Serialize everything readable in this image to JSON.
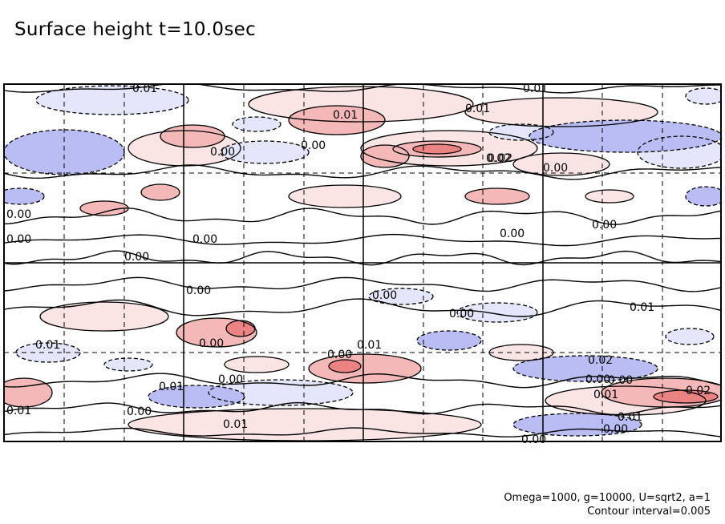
{
  "title": "Surface height t=10.0sec",
  "footnote": {
    "params": "Omega=1000, g=10000, U=sqrt2, a=1",
    "interval": "Contour interval=0.005"
  },
  "colors": {
    "positive_light": "#fbe4e4",
    "positive_mid": "#f4b8b8",
    "positive_strong": "#ec8383",
    "negative_light": "#e4e6fb",
    "negative_mid": "#b9bdf3",
    "negative_strong": "#8189e6",
    "frame": "#000000"
  },
  "chart_data": {
    "type": "heatmap",
    "title": "Surface height t=10.0sec",
    "contour_interval": 0.005,
    "grid": "solid major lines with dashed minor lines",
    "shading": "red for positive, blue for negative",
    "contour_labels": [
      {
        "text": "0.01",
        "value": 0.01
      },
      {
        "text": "0.01",
        "value": 0.01
      },
      {
        "text": "0.01",
        "value": 0.01
      },
      {
        "text": "0.01",
        "value": 0.01
      },
      {
        "text": "0.00",
        "value": 0.0
      },
      {
        "text": "0.00",
        "value": 0.0
      },
      {
        "text": "0.02",
        "value": 0.02
      },
      {
        "text": "0.00",
        "value": 0.0
      },
      {
        "text": "0.00",
        "value": 0.0
      },
      {
        "text": "0.00",
        "value": 0.0
      },
      {
        "text": "0.00",
        "value": 0.0
      },
      {
        "text": "0.00",
        "value": 0.0
      },
      {
        "text": "0.00",
        "value": 0.0
      },
      {
        "text": "0.00",
        "value": 0.0
      },
      {
        "text": "0.00",
        "value": 0.0
      },
      {
        "text": "0.00",
        "value": 0.0
      },
      {
        "text": "0.00",
        "value": 0.0
      },
      {
        "text": "0.01",
        "value": 0.01
      },
      {
        "text": "0.00",
        "value": 0.0
      },
      {
        "text": "0.00",
        "value": 0.0
      },
      {
        "text": "0.01",
        "value": 0.01
      },
      {
        "text": "0.01",
        "value": 0.01
      },
      {
        "text": "0.00",
        "value": 0.0
      },
      {
        "text": "0.02",
        "value": 0.02
      },
      {
        "text": "0.01",
        "value": 0.01
      },
      {
        "text": "0.00",
        "value": 0.0
      },
      {
        "text": "0.01",
        "value": 0.01
      },
      {
        "text": "0.00",
        "value": 0.0
      },
      {
        "text": "0.01",
        "value": 0.01
      },
      {
        "text": "0.02",
        "value": 0.02
      },
      {
        "text": "0.00",
        "value": 0.0
      },
      {
        "text": "0.00",
        "value": 0.0
      },
      {
        "text": "0.01",
        "value": 0.01
      },
      {
        "text": "0.01",
        "value": 0.01
      },
      {
        "text": "0.00",
        "value": 0.0
      },
      {
        "text": "0.02",
        "value": 0.02
      }
    ]
  }
}
